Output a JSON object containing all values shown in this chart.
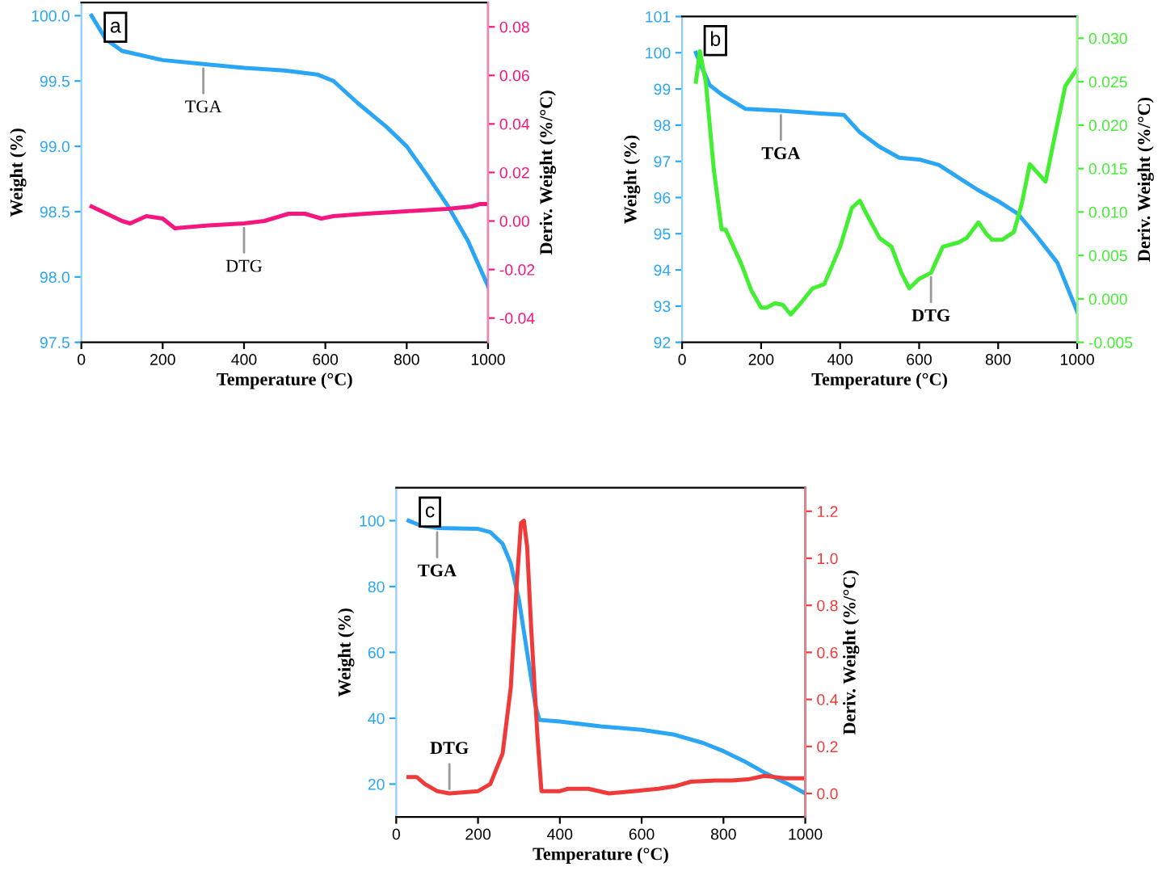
{
  "chart_data": [
    {
      "type": "line",
      "annotations": [
        "a"
      ],
      "xlabel": "Temperature (°C)",
      "ylabel": "Weight (%)",
      "y2label": "Deriv. Weight (%/°C)",
      "xlim": [
        0,
        1000
      ],
      "xticks": [
        0,
        200,
        400,
        600,
        800,
        1000
      ],
      "ylim": [
        97.5,
        100.1
      ],
      "yticks": [
        97.5,
        {
          "value": 98,
          "label": "98.0"
        },
        98.5,
        {
          "value": 99,
          "label": "99.0"
        },
        99.5,
        {
          "value": 100,
          "label": "100.0"
        }
      ],
      "y2lim": [
        -0.05,
        0.09
      ],
      "y2ticks": [
        {
          "value": -0.04,
          "label": "-0.04"
        },
        {
          "value": -0.02,
          "label": "-0.02"
        },
        {
          "value": 0,
          "label": "0.00"
        },
        {
          "value": 0.02,
          "label": "0.02"
        },
        {
          "value": 0.04,
          "label": "0.04"
        },
        {
          "value": 0.06,
          "label": "0.06"
        },
        {
          "value": 0.08,
          "label": "0.08"
        }
      ],
      "grid": false,
      "legend": false,
      "marker": "none",
      "line_style": "solid",
      "series": [
        {
          "name": "TGA",
          "color": "#2aa6f5",
          "x": [
            25,
            60,
            100,
            200,
            300,
            400,
            500,
            580,
            620,
            680,
            750,
            800,
            850,
            900,
            950,
            980,
            1000
          ],
          "values": [
            100.0,
            99.82,
            99.73,
            99.66,
            99.63,
            99.6,
            99.58,
            99.55,
            99.5,
            99.33,
            99.15,
            99.0,
            98.78,
            98.55,
            98.28,
            98.07,
            97.93
          ]
        },
        {
          "name": "DTG",
          "color": "#f5177f",
          "axis": "y2",
          "x": [
            25,
            50,
            100,
            120,
            160,
            200,
            230,
            300,
            400,
            450,
            510,
            550,
            590,
            620,
            700,
            800,
            900,
            960,
            980,
            1000
          ],
          "values": [
            0.006,
            0.004,
            0.0,
            -0.001,
            0.002,
            0.001,
            -0.003,
            -0.002,
            -0.001,
            0.0,
            0.003,
            0.003,
            0.001,
            0.002,
            0.003,
            0.004,
            0.005,
            0.006,
            0.007,
            0.007
          ]
        }
      ]
    },
    {
      "type": "line",
      "annotations": [
        "b"
      ],
      "xlabel": "Temperature (°C)",
      "ylabel": "Weight (%)",
      "y2label": "Deriv. Weight (%/°C)",
      "xlim": [
        0,
        1000
      ],
      "xticks": [
        0,
        200,
        400,
        600,
        800,
        1000
      ],
      "ylim": [
        92,
        101
      ],
      "yticks": [
        92,
        93,
        94,
        95,
        96,
        97,
        98,
        99,
        100,
        101
      ],
      "y2lim": [
        -0.005,
        0.0325
      ],
      "y2ticks": [
        {
          "value": -0.005,
          "label": "-0.005"
        },
        {
          "value": 0,
          "label": "0.000"
        },
        {
          "value": 0.005,
          "label": "0.005"
        },
        {
          "value": 0.01,
          "label": "0.010"
        },
        {
          "value": 0.015,
          "label": "0.015"
        },
        {
          "value": 0.02,
          "label": "0.020"
        },
        {
          "value": 0.025,
          "label": "0.025"
        },
        {
          "value": 0.03,
          "label": "0.030"
        }
      ],
      "grid": false,
      "legend": false,
      "marker": "none",
      "line_style": "solid",
      "series": [
        {
          "name": "TGA",
          "color": "#2aa6f5",
          "x": [
            35,
            50,
            70,
            100,
            160,
            250,
            350,
            410,
            450,
            500,
            550,
            600,
            650,
            700,
            750,
            800,
            850,
            900,
            950,
            1000
          ],
          "values": [
            100.0,
            99.6,
            99.1,
            98.85,
            98.45,
            98.4,
            98.32,
            98.28,
            97.8,
            97.4,
            97.1,
            97.05,
            96.9,
            96.55,
            96.2,
            95.9,
            95.55,
            94.9,
            94.2,
            92.85
          ]
        },
        {
          "name": "DTG",
          "color": "#44ee33",
          "axis": "y2",
          "x": [
            35,
            45,
            60,
            80,
            100,
            110,
            130,
            150,
            175,
            200,
            215,
            235,
            255,
            275,
            300,
            330,
            360,
            400,
            430,
            450,
            470,
            500,
            530,
            555,
            575,
            600,
            630,
            660,
            700,
            720,
            750,
            770,
            785,
            810,
            840,
            860,
            880,
            900,
            920,
            940,
            970,
            1000
          ],
          "values": [
            0.025,
            0.0285,
            0.025,
            0.015,
            0.008,
            0.008,
            0.006,
            0.004,
            0.001,
            -0.001,
            -0.001,
            -0.0005,
            -0.0007,
            -0.0018,
            -0.0005,
            0.0012,
            0.0017,
            0.006,
            0.0105,
            0.0113,
            0.0095,
            0.007,
            0.006,
            0.003,
            0.0012,
            0.0023,
            0.003,
            0.006,
            0.0065,
            0.007,
            0.0088,
            0.0075,
            0.0068,
            0.0068,
            0.0077,
            0.011,
            0.0155,
            0.0145,
            0.0135,
            0.018,
            0.0245,
            0.0265
          ]
        }
      ]
    },
    {
      "type": "line",
      "annotations": [
        "c"
      ],
      "xlabel": "Temperature (°C)",
      "ylabel": "Weight (%)",
      "y2label": "Deriv. Weight (%/°C)",
      "xlim": [
        0,
        1000
      ],
      "xticks": [
        0,
        200,
        400,
        600,
        800,
        1000
      ],
      "ylim": [
        10,
        110
      ],
      "yticks": [
        20,
        40,
        60,
        80,
        100
      ],
      "y2lim": [
        -0.1,
        1.3
      ],
      "y2ticks": [
        {
          "value": 0,
          "label": "0.0"
        },
        0.2,
        0.4,
        0.6,
        0.8,
        {
          "value": 1,
          "label": "1.0"
        },
        1.2
      ],
      "grid": false,
      "legend": false,
      "marker": "none",
      "line_style": "solid",
      "series": [
        {
          "name": "TGA",
          "color": "#2aa6f5",
          "x": [
            30,
            60,
            100,
            200,
            230,
            260,
            280,
            300,
            320,
            340,
            350,
            400,
            500,
            600,
            680,
            750,
            800,
            850,
            900,
            950,
            1000
          ],
          "values": [
            100,
            98.5,
            97.8,
            97.5,
            96.5,
            93,
            87,
            76,
            60,
            44,
            39.5,
            39,
            37.5,
            36.5,
            35,
            32.5,
            30,
            27,
            23.5,
            20.5,
            17.2
          ]
        },
        {
          "name": "DTG",
          "color": "#f03a3a",
          "axis": "y2",
          "x": [
            30,
            50,
            70,
            100,
            130,
            200,
            230,
            260,
            280,
            295,
            305,
            312,
            320,
            330,
            345,
            355,
            400,
            420,
            470,
            520,
            580,
            640,
            680,
            720,
            780,
            820,
            860,
            900,
            950,
            1000
          ],
          "values": [
            0.07,
            0.07,
            0.04,
            0.01,
            0.0,
            0.01,
            0.04,
            0.17,
            0.45,
            0.9,
            1.15,
            1.16,
            1.05,
            0.7,
            0.25,
            0.01,
            0.01,
            0.02,
            0.02,
            0.0,
            0.01,
            0.02,
            0.03,
            0.05,
            0.055,
            0.055,
            0.06,
            0.075,
            0.065,
            0.065
          ]
        }
      ]
    }
  ]
}
